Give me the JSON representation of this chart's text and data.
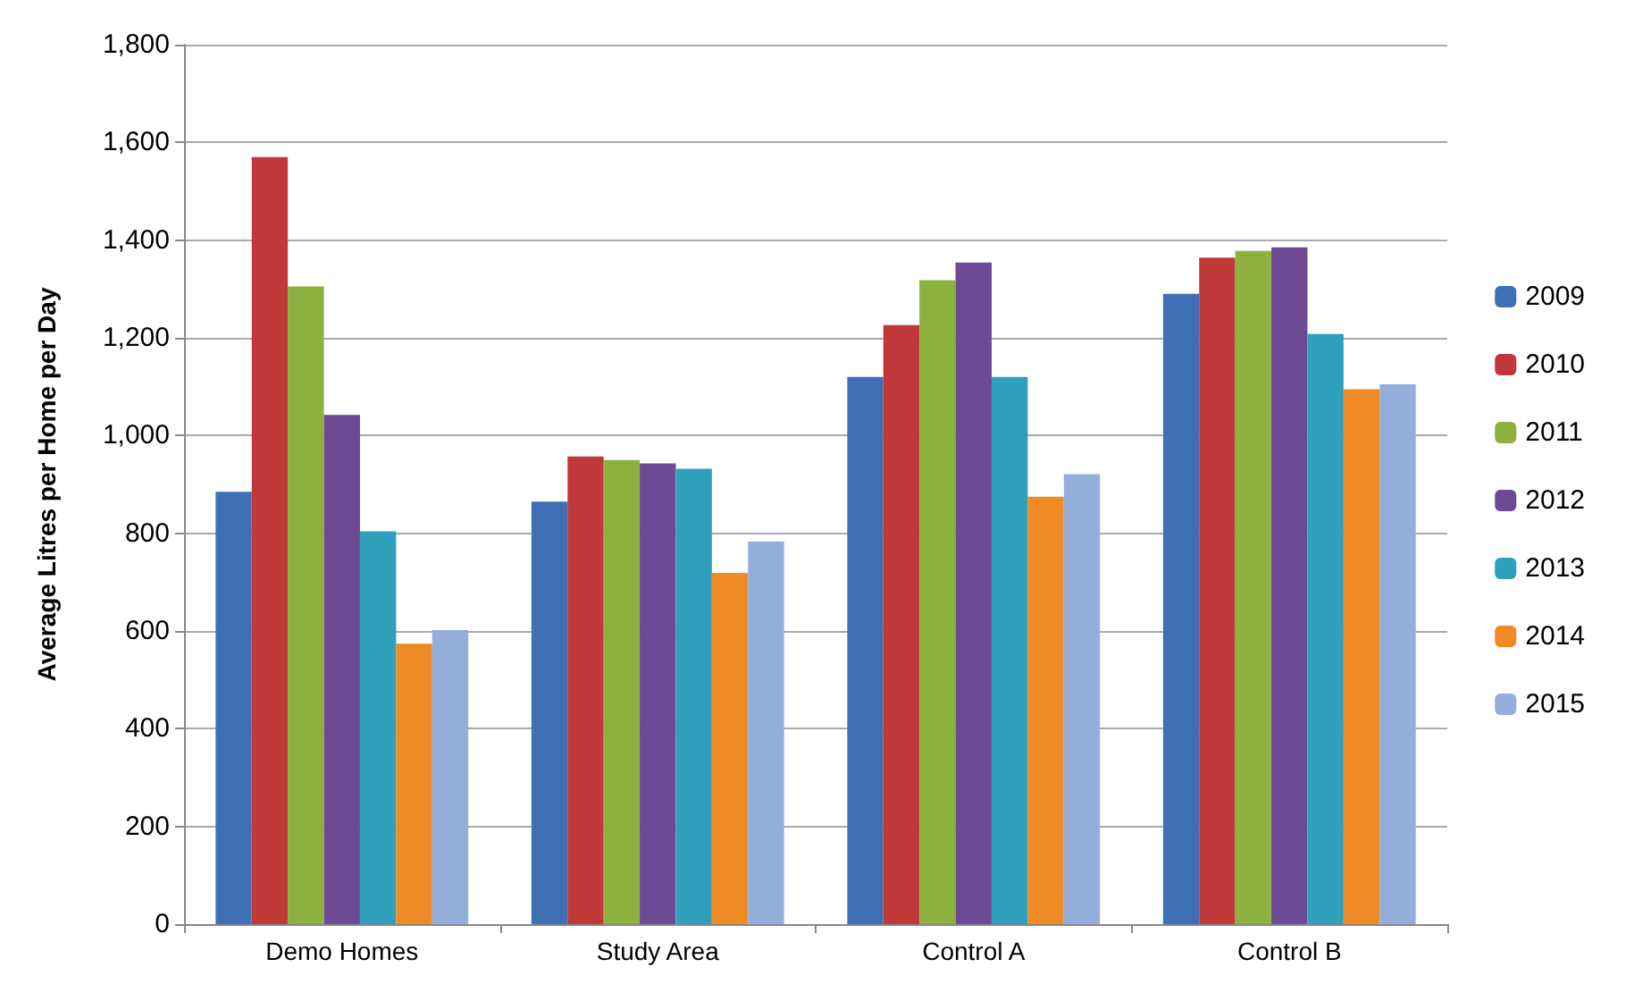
{
  "chart_data": {
    "type": "bar",
    "ylabel": "Average Litres per Home per Day",
    "categories": [
      "Demo Homes",
      "Study Area",
      "Control A",
      "Control B"
    ],
    "series": [
      {
        "name": "2009",
        "color": "#3f6fb5",
        "values": [
          885,
          865,
          1120,
          1290
        ]
      },
      {
        "name": "2010",
        "color": "#c0383a",
        "values": [
          1570,
          957,
          1226,
          1364
        ]
      },
      {
        "name": "2011",
        "color": "#8cb13e",
        "values": [
          1305,
          950,
          1318,
          1378
        ]
      },
      {
        "name": "2012",
        "color": "#6e4a95",
        "values": [
          1042,
          943,
          1354,
          1385
        ]
      },
      {
        "name": "2013",
        "color": "#2fa0bb",
        "values": [
          804,
          932,
          1120,
          1208
        ]
      },
      {
        "name": "2014",
        "color": "#f08a24",
        "values": [
          574,
          719,
          875,
          1095
        ]
      },
      {
        "name": "2015",
        "color": "#93aedb",
        "values": [
          602,
          783,
          921,
          1105
        ]
      }
    ],
    "ylim": [
      0,
      1800
    ],
    "yticks": [
      0,
      200,
      400,
      600,
      800,
      {
        "value": 1000,
        "label": "1,000"
      },
      {
        "value": 1200,
        "label": "1,200"
      },
      {
        "value": 1400,
        "label": "1,400"
      },
      {
        "value": 1600,
        "label": "1,600"
      },
      {
        "value": 1800,
        "label": "1,800"
      }
    ],
    "grid": "y",
    "legend": "right"
  }
}
